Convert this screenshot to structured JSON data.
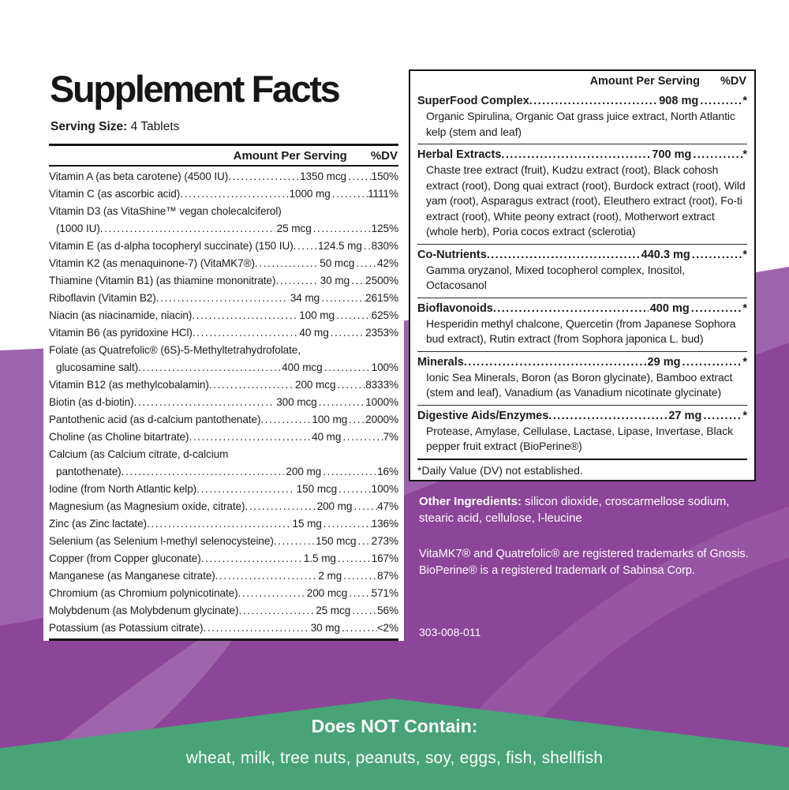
{
  "label": {
    "title": "Supplement Facts",
    "serving_size_label": "Serving Size:",
    "serving_size_value": "4 Tablets"
  },
  "left_panel": {
    "column_header": "Amount Per Serving",
    "dv_header": "%DV",
    "rows": [
      {
        "label": "Vitamin A (as beta carotene) (4500 IU)",
        "amount": "1350 mcg",
        "dv": "150%"
      },
      {
        "label": "Vitamin C (as ascorbic acid)",
        "amount": "1000 mg",
        "dv": "1111%"
      },
      {
        "label": "Vitamin D3 (as VitaShine™ vegan cholecalciferol)",
        "label2": "(1000 IU)",
        "amount": "25 mcg",
        "dv": "125%"
      },
      {
        "label": "Vitamin E (as d-alpha tocopheryl succinate) (150 IU)",
        "amount": "124.5 mg",
        "dv": "830%"
      },
      {
        "label": "Vitamin K2 (as menaquinone-7) (VitaMK7®)",
        "amount": "50 mcg",
        "dv": "42%"
      },
      {
        "label": "Thiamine (Vitamin B1) (as thiamine mononitrate)",
        "amount": "30 mg",
        "dv": "2500%"
      },
      {
        "label": "Riboflavin (Vitamin B2)",
        "amount": "34 mg",
        "dv": "2615%"
      },
      {
        "label": "Niacin (as niacinamide, niacin)",
        "amount": "100 mg",
        "dv": "625%"
      },
      {
        "label": "Vitamin B6 (as pyridoxine HCl)",
        "amount": "40 mg",
        "dv": "2353%"
      },
      {
        "label": "Folate (as Quatrefolic® (6S)-5-Methyltetrahydrofolate,",
        "label2": "glucosamine salt)",
        "amount": "400 mcg",
        "dv": "100%"
      },
      {
        "label": "Vitamin B12 (as methylcobalamin)",
        "amount": "200 mcg",
        "dv": "8333%"
      },
      {
        "label": "Biotin (as d-biotin)",
        "amount": "300 mcg",
        "dv": "1000%"
      },
      {
        "label": "Pantothenic acid (as d-calcium pantothenate)",
        "amount": "100 mg",
        "dv": "2000%"
      },
      {
        "label": "Choline (as Choline bitartrate)",
        "amount": "40 mg",
        "dv": "7%"
      },
      {
        "label": "Calcium (as Calcium citrate, d-calcium",
        "label2": "pantothenate)",
        "amount": "200 mg",
        "dv": "16%"
      },
      {
        "label": "Iodine (from North Atlantic kelp)",
        "amount": "150 mcg",
        "dv": "100%"
      },
      {
        "label": "Magnesium (as Magnesium oxide, citrate)",
        "amount": "200 mg",
        "dv": "47%"
      },
      {
        "label": "Zinc (as Zinc lactate)",
        "amount": "15 mg",
        "dv": "136%"
      },
      {
        "label": "Selenium (as Selenium l-methyl selenocysteine)",
        "amount": "150 mcg",
        "dv": "273%"
      },
      {
        "label": "Copper (from Copper gluconate)",
        "amount": "1.5 mg",
        "dv": "167%"
      },
      {
        "label": "Manganese (as Manganese citrate)",
        "amount": "2 mg",
        "dv": "87%"
      },
      {
        "label": "Chromium (as Chromium polynicotinate)",
        "amount": "200 mcg",
        "dv": "571%"
      },
      {
        "label": "Molybdenum (as Molybdenum glycinate)",
        "amount": "25 mcg",
        "dv": "56%"
      },
      {
        "label": "Potassium (as Potassium citrate)",
        "amount": "30 mg",
        "dv": "<2%"
      }
    ]
  },
  "right_panel": {
    "column_header": "Amount Per Serving",
    "dv_header": "%DV",
    "sections": [
      {
        "name": "SuperFood Complex",
        "amount": "908 mg",
        "dv": "*",
        "desc": "Organic Spirulina, Organic Oat grass juice extract, North Atlantic kelp (stem and leaf)"
      },
      {
        "name": "Herbal Extracts",
        "amount": "700 mg",
        "dv": "*",
        "desc": "Chaste tree extract (fruit), Kudzu extract (root), Black cohosh extract (root), Dong quai extract (root), Burdock extract (root), Wild yam (root), Asparagus extract (root), Eleuthero extract (root), Fo-ti extract (root), White peony extract (root), Motherwort extract (whole herb), Poria cocos extract (sclerotia)"
      },
      {
        "name": "Co-Nutrients",
        "amount": "440.3 mg",
        "dv": "*",
        "desc": "Gamma oryzanol, Mixed tocopherol complex, Inositol, Octacosanol"
      },
      {
        "name": "Bioflavonoids",
        "amount": "400 mg",
        "dv": "*",
        "desc": "Hesperidin methyl chalcone, Quercetin (from Japanese Sophora bud extract), Rutin extract (from Sophora japonica L. bud)"
      },
      {
        "name": "Minerals",
        "amount": "29 mg",
        "dv": "*",
        "desc": "Ionic Sea Minerals, Boron (as Boron glycinate), Bamboo extract (stem and leaf), Vanadium (as Vanadium nicotinate glycinate)"
      },
      {
        "name": "Digestive Aids/Enzymes",
        "amount": "27 mg",
        "dv": "*",
        "desc": "Protease, Amylase, Cellulase, Lactase, Lipase, Invertase, Black pepper fruit extract (BioPerine®)"
      }
    ],
    "footnote": "*Daily Value (DV) not established."
  },
  "other_ingredients": {
    "label": "Other Ingredients:",
    "text": " silicon dioxide, croscarmellose sodium, stearic acid, cellulose, l-leucine"
  },
  "trademarks": {
    "line1": "VitaMK7® and Quatrefolic® are registered trademarks of Gnosis.",
    "line2": "BioPerine® is a registered trademark of Sabinsa Corp."
  },
  "product_code": "303-008-011",
  "allergen_banner": {
    "title": "Does NOT Contain:",
    "items": "wheat, milk, tree nuts, peanuts, soy, eggs, fish, shellfish"
  },
  "colors": {
    "purple_dark": "#8c4599",
    "purple_mid": "#9d64ad",
    "purple_light": "#b285c0",
    "green": "#48a377",
    "text_black": "#1b1b1b",
    "text_white": "#ffffff"
  }
}
